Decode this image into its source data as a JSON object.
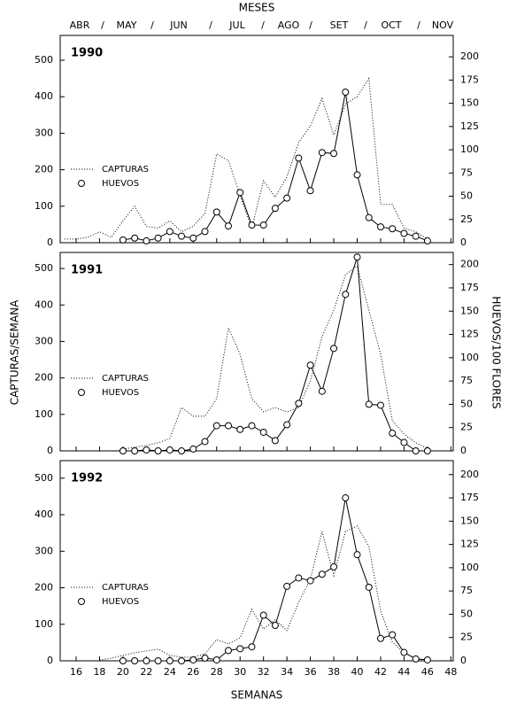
{
  "chart_data": [
    {
      "type": "line",
      "annotation": "1990",
      "top_axis_title": "MESES",
      "months": [
        "ABR",
        "MAY",
        "JUN",
        "JUL",
        "AGO",
        "SET",
        "OCT",
        "NOV"
      ],
      "month_separator": "/",
      "xlim": [
        14.64,
        48.2
      ],
      "xticks": [
        16,
        18,
        20,
        22,
        24,
        26,
        28,
        30,
        32,
        34,
        36,
        38,
        40,
        42,
        44,
        46,
        48
      ],
      "ylim": [
        0,
        568
      ],
      "yticks": [
        0,
        100,
        200,
        300,
        400,
        500
      ],
      "y2lim": [
        0,
        223
      ],
      "y2ticks": [
        0,
        25,
        50,
        75,
        100,
        125,
        150,
        175,
        200
      ],
      "series": [
        {
          "name": "CAPTURAS",
          "color": "#000000",
          "linestyle": "dotted",
          "x": [
            15,
            16,
            17,
            18,
            19,
            20,
            21,
            22,
            23,
            24,
            25,
            26,
            27,
            28,
            29,
            30,
            31,
            32,
            33,
            34,
            35,
            36,
            37,
            38,
            39,
            40,
            41,
            42,
            43,
            44,
            45,
            46
          ],
          "values": [
            10,
            10,
            15,
            30,
            15,
            60,
            100,
            45,
            40,
            60,
            30,
            45,
            80,
            243,
            225,
            130,
            40,
            170,
            125,
            180,
            275,
            320,
            395,
            295,
            380,
            400,
            450,
            105,
            105,
            40,
            30,
            10
          ]
        },
        {
          "name": "HUEVOS",
          "color": "#000000",
          "linestyle": "solid",
          "marker": "circle",
          "axis": "y2",
          "x": [
            20,
            21,
            22,
            23,
            24,
            25,
            26,
            27,
            28,
            29,
            30,
            31,
            32,
            33,
            34,
            35,
            36,
            37,
            38,
            39,
            40,
            41,
            42,
            43,
            44,
            45,
            46
          ],
          "values": [
            3,
            5,
            2,
            5,
            12,
            7,
            5,
            12,
            33,
            18,
            54,
            19,
            19,
            37,
            48,
            91,
            56,
            97,
            96,
            162,
            73,
            27,
            17,
            15,
            10,
            7,
            2
          ]
        }
      ]
    },
    {
      "type": "line",
      "annotation": "1991",
      "ylabel": "CAPTURAS/SEMANA",
      "y2label": "HUEVOS/100 FLORES",
      "xlim": [
        14.64,
        48.2
      ],
      "xticks": [
        16,
        18,
        20,
        22,
        24,
        26,
        28,
        30,
        32,
        34,
        36,
        38,
        40,
        42,
        44,
        46,
        48
      ],
      "ylim": [
        0,
        544
      ],
      "yticks": [
        0,
        100,
        200,
        300,
        400,
        500
      ],
      "y2lim": [
        0,
        213
      ],
      "y2ticks": [
        0,
        25,
        50,
        75,
        100,
        125,
        150,
        175,
        200
      ],
      "series": [
        {
          "name": "CAPTURAS",
          "color": "#000000",
          "linestyle": "dotted",
          "x": [
            20,
            21,
            22,
            23,
            24,
            25,
            26,
            27,
            28,
            29,
            30,
            31,
            32,
            33,
            34,
            35,
            36,
            37,
            38,
            39,
            40,
            41,
            42,
            43,
            44,
            45,
            46
          ],
          "values": [
            5,
            10,
            15,
            22,
            34,
            119,
            95,
            95,
            143,
            337,
            265,
            143,
            107,
            119,
            107,
            119,
            192,
            313,
            386,
            483,
            507,
            386,
            265,
            83,
            46,
            22,
            7
          ]
        },
        {
          "name": "HUEVOS",
          "color": "#000000",
          "linestyle": "solid",
          "marker": "circle",
          "axis": "y2",
          "x": [
            20,
            21,
            22,
            23,
            24,
            25,
            26,
            27,
            28,
            29,
            30,
            31,
            32,
            33,
            34,
            35,
            36,
            37,
            38,
            39,
            40,
            41,
            42,
            43,
            44,
            45,
            46
          ],
          "values": [
            0,
            0,
            1,
            0,
            1,
            0,
            2,
            10,
            27,
            27,
            23,
            27,
            20,
            11,
            28,
            51,
            92,
            64,
            110,
            168,
            208,
            50,
            49,
            19,
            9,
            0,
            0
          ]
        }
      ]
    },
    {
      "type": "line",
      "annotation": "1992",
      "xlabel": "SEMANAS",
      "xlim": [
        14.64,
        48.2
      ],
      "xticks": [
        16,
        18,
        20,
        22,
        24,
        26,
        28,
        30,
        32,
        34,
        36,
        38,
        40,
        42,
        44,
        46,
        48
      ],
      "ylim": [
        0,
        548
      ],
      "yticks": [
        0,
        100,
        200,
        300,
        400,
        500
      ],
      "y2lim": [
        0,
        215
      ],
      "y2ticks": [
        0,
        25,
        50,
        75,
        100,
        125,
        150,
        175,
        200
      ],
      "series": [
        {
          "name": "CAPTURAS",
          "color": "#000000",
          "linestyle": "dotted",
          "x": [
            18,
            19,
            20,
            21,
            22,
            23,
            24,
            25,
            26,
            27,
            28,
            29,
            30,
            31,
            32,
            33,
            34,
            35,
            36,
            37,
            38,
            39,
            40,
            41,
            42,
            43,
            44,
            45,
            46
          ],
          "values": [
            2,
            7,
            15,
            22,
            27,
            32,
            15,
            10,
            10,
            19,
            58,
            46,
            63,
            141,
            87,
            112,
            83,
            160,
            223,
            354,
            233,
            354,
            369,
            313,
            136,
            51,
            22,
            7,
            2
          ]
        },
        {
          "name": "HUEVOS",
          "color": "#000000",
          "linestyle": "solid",
          "marker": "circle",
          "axis": "y2",
          "x": [
            20,
            21,
            22,
            23,
            24,
            25,
            26,
            27,
            28,
            29,
            30,
            31,
            32,
            33,
            34,
            35,
            36,
            37,
            38,
            39,
            40,
            41,
            42,
            43,
            44,
            45,
            46
          ],
          "values": [
            0,
            0,
            0,
            0,
            0,
            0,
            1,
            3,
            1,
            11,
            13,
            15,
            49,
            38,
            80,
            89,
            86,
            93,
            101,
            175,
            114,
            79,
            24,
            28,
            9,
            2,
            1
          ]
        }
      ]
    }
  ]
}
